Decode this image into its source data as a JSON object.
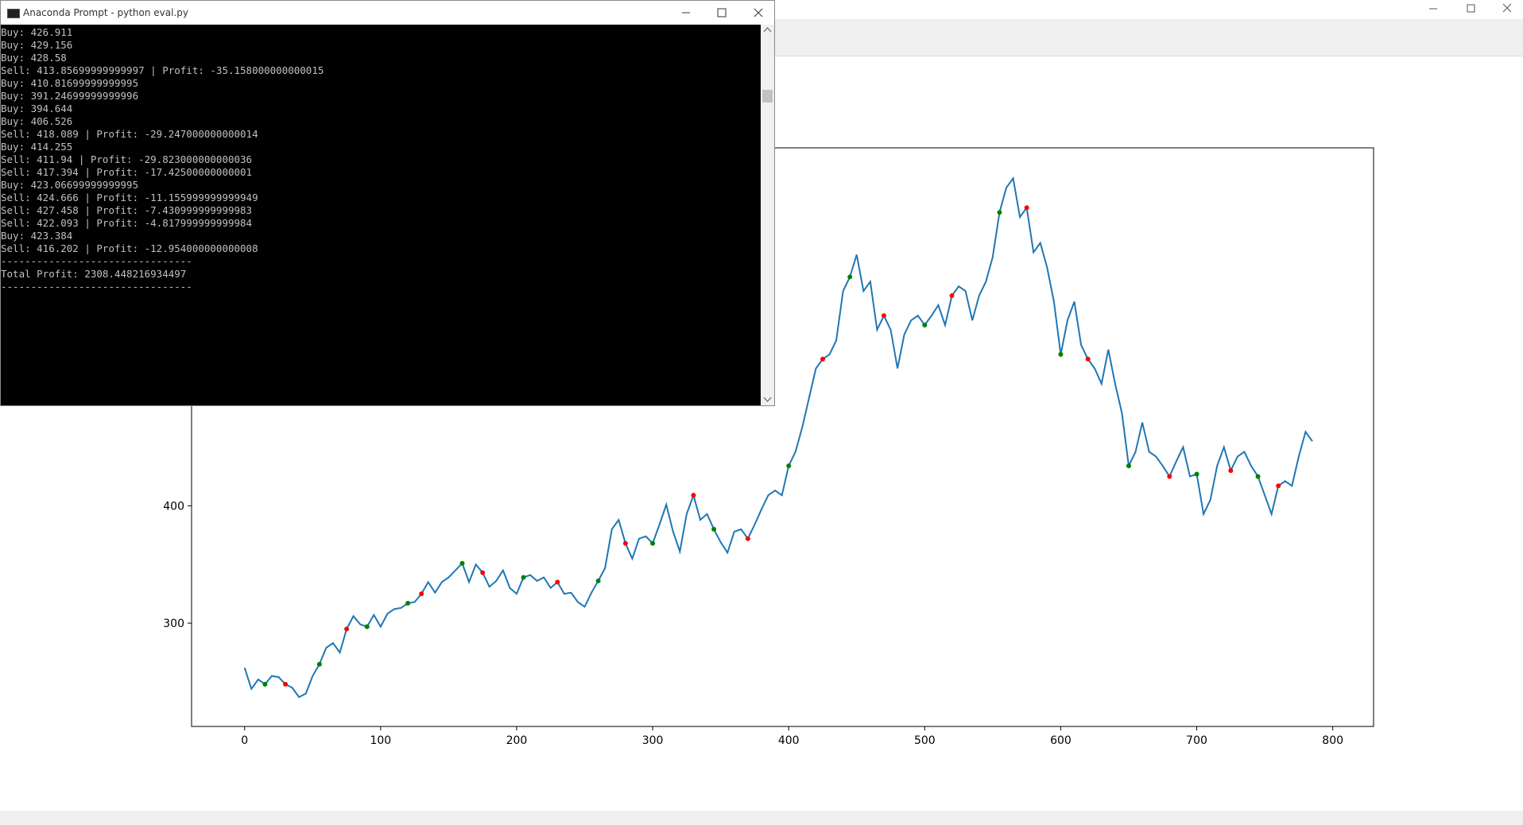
{
  "terminal": {
    "title": "Anaconda Prompt - python  eval.py",
    "lines": [
      "Buy: 426.911",
      "Buy: 429.156",
      "Buy: 428.58",
      "Sell: 413.85699999999997 | Profit: -35.158000000000015",
      "Buy: 410.81699999999995",
      "Buy: 391.24699999999996",
      "Buy: 394.644",
      "Buy: 406.526",
      "Sell: 418.089 | Profit: -29.247000000000014",
      "Buy: 414.255",
      "Sell: 411.94 | Profit: -29.823000000000036",
      "Sell: 417.394 | Profit: -17.42500000000001",
      "Buy: 423.06699999999995",
      "Sell: 424.666 | Profit: -11.155999999999949",
      "Sell: 427.458 | Profit: -7.430999999999983",
      "Sell: 422.093 | Profit: -4.817999999999984",
      "Buy: 423.384",
      "Sell: 416.202 | Profit: -12.954000000000008",
      "--------------------------------",
      "Total Profit: 2308.448216934497",
      "--------------------------------"
    ]
  },
  "chart_data": {
    "type": "line",
    "x": [
      0,
      5,
      10,
      15,
      20,
      25,
      30,
      35,
      40,
      45,
      50,
      55,
      60,
      65,
      70,
      75,
      80,
      85,
      90,
      95,
      100,
      105,
      110,
      115,
      120,
      125,
      130,
      135,
      140,
      145,
      150,
      155,
      160,
      165,
      170,
      175,
      180,
      185,
      190,
      195,
      200,
      205,
      210,
      215,
      220,
      225,
      230,
      235,
      240,
      245,
      250,
      255,
      260,
      265,
      270,
      275,
      280,
      285,
      290,
      295,
      300,
      305,
      310,
      315,
      320,
      325,
      330,
      335,
      340,
      345,
      350,
      355,
      360,
      365,
      370,
      375,
      380,
      385,
      390,
      395,
      400,
      405,
      410,
      415,
      420,
      425,
      430,
      435,
      440,
      445,
      450,
      455,
      460,
      465,
      470,
      475,
      480,
      485,
      490,
      495,
      500,
      505,
      510,
      515,
      520,
      525,
      530,
      535,
      540,
      545,
      550,
      555,
      560,
      565,
      570,
      575,
      580,
      585,
      590,
      595,
      600,
      605,
      610,
      615,
      620,
      625,
      630,
      635,
      640,
      645,
      650,
      655,
      660,
      665,
      670,
      675,
      680,
      685,
      690,
      695,
      700,
      705,
      710,
      715,
      720,
      725,
      730,
      735,
      740,
      745,
      750,
      755,
      760,
      765,
      770,
      775,
      780,
      785
    ],
    "values": [
      262,
      244,
      252,
      248,
      255,
      254,
      248,
      245,
      237,
      240,
      255,
      265,
      279,
      283,
      275,
      295,
      306,
      299,
      297,
      307,
      297,
      308,
      312,
      313,
      317,
      318,
      325,
      335,
      326,
      335,
      339,
      345,
      351,
      335,
      350,
      343,
      331,
      336,
      345,
      330,
      325,
      339,
      341,
      336,
      339,
      330,
      335,
      325,
      326,
      318,
      314,
      326,
      336,
      347,
      380,
      388,
      368,
      355,
      372,
      374,
      368,
      384,
      401,
      378,
      361,
      393,
      409,
      388,
      393,
      380,
      369,
      360,
      378,
      380,
      372,
      384,
      397,
      409,
      413,
      409,
      434,
      446,
      467,
      492,
      517,
      525,
      529,
      541,
      583,
      595,
      614,
      583,
      591,
      550,
      562,
      550,
      517,
      546,
      558,
      562,
      554,
      562,
      571,
      554,
      579,
      587,
      583,
      558,
      579,
      591,
      612,
      650,
      671,
      679,
      646,
      654,
      616,
      624,
      603,
      574,
      529,
      558,
      574,
      537,
      525,
      517,
      504,
      533,
      504,
      479,
      434,
      446,
      471,
      446,
      442,
      434,
      425,
      438,
      450,
      425,
      427,
      393,
      405,
      434,
      450,
      430,
      442,
      446,
      434,
      425,
      409,
      393,
      417,
      421,
      417,
      442,
      463,
      455
    ],
    "color": "#1f77b4",
    "buy": {
      "x": [
        15,
        55,
        90,
        120,
        160,
        205,
        260,
        300,
        345,
        400,
        445,
        500,
        555,
        600,
        650,
        700,
        745
      ],
      "values": [
        248,
        265,
        297,
        317,
        351,
        339,
        336,
        368,
        380,
        434,
        595,
        554,
        650,
        529,
        434,
        427,
        425
      ],
      "color": "green"
    },
    "sell": {
      "x": [
        30,
        75,
        130,
        175,
        230,
        280,
        330,
        370,
        425,
        470,
        520,
        575,
        620,
        680,
        725,
        760
      ],
      "values": [
        248,
        295,
        325,
        343,
        335,
        368,
        409,
        372,
        525,
        562,
        579,
        654,
        525,
        425,
        430,
        417
      ],
      "color": "red"
    },
    "xlim": [
      -39,
      830
    ],
    "ylim": [
      212,
      705
    ],
    "xticks": [
      0,
      100,
      200,
      300,
      400,
      500,
      600,
      700,
      800
    ],
    "yticks": [
      300,
      400
    ]
  }
}
